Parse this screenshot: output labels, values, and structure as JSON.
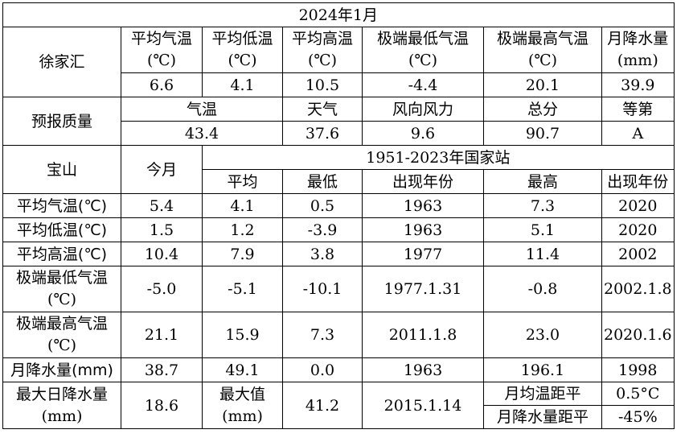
{
  "title": "2024年1月",
  "xujiahui": {
    "station": "徐家汇",
    "headers": [
      {
        "l1": "平均气温",
        "l2": "(℃)"
      },
      {
        "l1": "平均低温",
        "l2": "(℃)"
      },
      {
        "l1": "平均高温",
        "l2": "(℃)"
      },
      {
        "l1": "极端最低气温",
        "l2": "(℃)"
      },
      {
        "l1": "极端最高气温",
        "l2": "(℃)"
      },
      {
        "l1": "月降水量",
        "l2": "(mm)"
      }
    ],
    "values": [
      "6.6",
      "4.1",
      "10.5",
      "-4.4",
      "20.1",
      "39.9"
    ]
  },
  "forecast": {
    "label": "预报质量",
    "headers": [
      "气温",
      "天气",
      "风向风力",
      "总分",
      "等第"
    ],
    "values": [
      "43.4",
      "37.6",
      "9.6",
      "90.7",
      "A"
    ]
  },
  "baoshan": {
    "station": "宝山",
    "this_month": "今月",
    "period": "1951-2023年国家站",
    "subheaders": [
      "平均",
      "最低",
      "出现年份",
      "最高",
      "出现年份"
    ],
    "rows": [
      {
        "label": "平均气温(℃)",
        "cur": "5.4",
        "avg": "4.1",
        "min": "0.5",
        "min_year": "1963",
        "max": "7.3",
        "max_year": "2020"
      },
      {
        "label": "平均低温(℃)",
        "cur": "1.5",
        "avg": "1.2",
        "min": "-3.9",
        "min_year": "1963",
        "max": "5.1",
        "max_year": "2020"
      },
      {
        "label": "平均高温(℃)",
        "cur": "10.4",
        "avg": "7.9",
        "min": "3.8",
        "min_year": "1977",
        "max": "11.4",
        "max_year": "2002"
      },
      {
        "label_l1": "极端最低气温",
        "label_l2": "(℃)",
        "cur": "-5.0",
        "avg": "-5.1",
        "min": "-10.1",
        "min_year": "1977.1.31",
        "max": "-0.8",
        "max_year": "2002.1.8"
      },
      {
        "label_l1": "极端最高气温",
        "label_l2": "(℃)",
        "cur": "21.1",
        "avg": "15.9",
        "min": "7.3",
        "min_year": "2011.1.8",
        "max": "23.0",
        "max_year": "2020.1.6"
      },
      {
        "label": "月降水量(mm)",
        "cur": "38.7",
        "avg": "49.1",
        "min": "0.0",
        "min_year": "1963",
        "max": "196.1",
        "max_year": "1998"
      }
    ],
    "max_daily": {
      "label_l1": "最大日降水量",
      "label_l2": "(mm)",
      "cur": "18.6",
      "max_label_l1": "最大值",
      "max_label_l2": "(mm)",
      "max_value": "41.2",
      "max_date": "2015.1.14"
    },
    "anomalies": [
      {
        "label": "月均温距平",
        "value": "0.5°C"
      },
      {
        "label": "月降水量距平",
        "value": "-45%"
      }
    ]
  }
}
